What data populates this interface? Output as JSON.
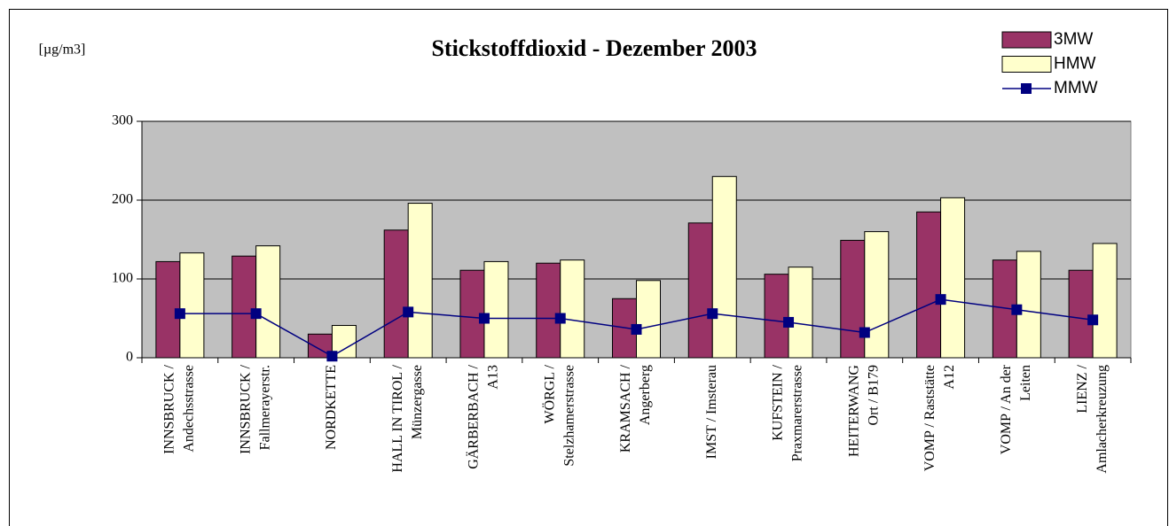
{
  "chart_data": {
    "type": "bar",
    "title": "Stickstoffdioxid - Dezember 2003",
    "ylabel": "[µg/m3]",
    "categories": [
      [
        "INNSBRUCK /",
        "Andechsstrasse"
      ],
      [
        "INNSBRUCK /",
        "Fallmerayerstr."
      ],
      [
        "NORDKETTE"
      ],
      [
        "HALL IN TIROL /",
        "Münzergasse"
      ],
      [
        "GÄRBERBACH /",
        "A13"
      ],
      [
        "WÖRGL /",
        "Stelzhamerstrasse"
      ],
      [
        "KRAMSACH /",
        "Angerberg"
      ],
      [
        "IMST / Imsterau"
      ],
      [
        "KUFSTEIN /",
        "Praxmarerstrasse"
      ],
      [
        "HEITERWANG",
        "Ort / B179"
      ],
      [
        "VOMP / Raststätte",
        "A12"
      ],
      [
        "VOMP / An der",
        "Leiten"
      ],
      [
        "LIENZ /",
        "Amlacherkreuzung"
      ]
    ],
    "series": [
      {
        "name": "3MW",
        "type": "bar",
        "color": "#993366",
        "values": [
          122,
          129,
          30,
          162,
          111,
          120,
          75,
          171,
          106,
          149,
          185,
          124,
          111
        ]
      },
      {
        "name": "HMW",
        "type": "bar",
        "color": "#ffffcc",
        "values": [
          133,
          142,
          41,
          196,
          122,
          124,
          98,
          230,
          115,
          160,
          203,
          135,
          145
        ]
      },
      {
        "name": "MMW",
        "type": "line",
        "color": "#000080",
        "values": [
          56,
          56,
          2,
          58,
          50,
          50,
          36,
          56,
          45,
          32,
          74,
          61,
          48
        ]
      }
    ],
    "ylim": [
      0,
      300
    ],
    "yticks": [
      0,
      100,
      200,
      300
    ],
    "grid": true,
    "plot_background": "#c0c0c0",
    "legend": "upper right"
  }
}
